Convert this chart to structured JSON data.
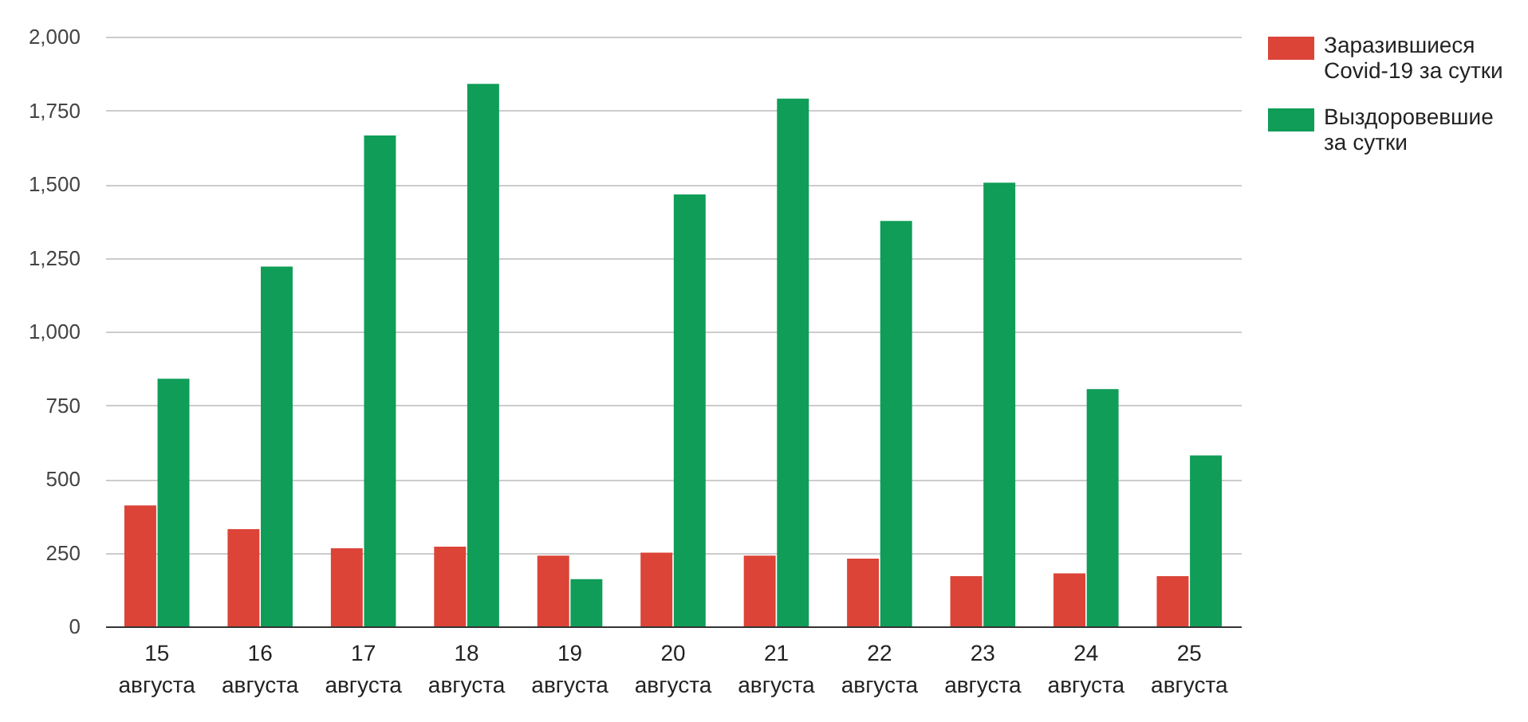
{
  "chart_data": {
    "type": "bar",
    "categories": [
      "15 августа",
      "16 августа",
      "17 августа",
      "18 августа",
      "19 августа",
      "20 августа",
      "21 августа",
      "22 августа",
      "23 августа",
      "24 августа",
      "25 августа"
    ],
    "series": [
      {
        "name": "Заразившиеся Covid-19 за сутки",
        "color": "#db4437",
        "values": [
          410,
          330,
          265,
          270,
          240,
          250,
          240,
          230,
          170,
          180,
          170
        ]
      },
      {
        "name": "Выздоровевшие за сутки",
        "color": "#0f9d58",
        "values": [
          840,
          1220,
          1665,
          1840,
          160,
          1465,
          1790,
          1375,
          1505,
          805,
          580
        ]
      }
    ],
    "ylim": [
      0,
      2000
    ],
    "yticks": [
      0,
      250,
      500,
      750,
      {
        "value": 1000,
        "label": "1,000"
      },
      {
        "value": 1250,
        "label": "1,250"
      },
      {
        "value": 1500,
        "label": "1,500"
      },
      {
        "value": 1750,
        "label": "1,750"
      },
      {
        "value": 2000,
        "label": "2,000"
      }
    ],
    "grid": "y",
    "legend": "right"
  }
}
